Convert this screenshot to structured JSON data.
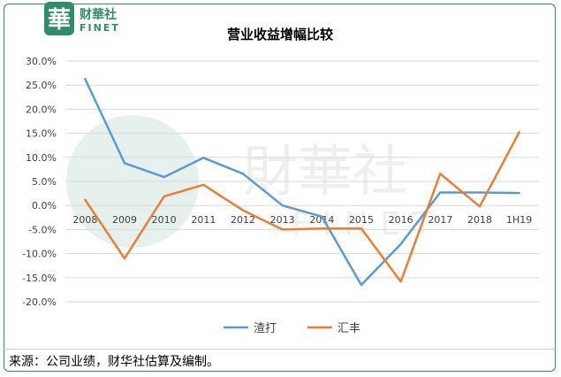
{
  "logo": {
    "glyph": "華",
    "name_cn": "财華社",
    "name_en": "FINET",
    "watermark_cn": "財華社",
    "watermark_en": "FINET"
  },
  "chart_data": {
    "type": "line",
    "title": "营业收益增幅比较",
    "categories": [
      "2008",
      "2009",
      "2010",
      "2011",
      "2012",
      "2013",
      "2014",
      "2015",
      "2016",
      "2017",
      "2018",
      "1H19"
    ],
    "y_ticks": [
      "30.0%",
      "25.0%",
      "20.0%",
      "15.0%",
      "10.0%",
      "5.0%",
      "0.0%",
      "-5.0%",
      "-10.0%",
      "-15.0%",
      "-20.0%"
    ],
    "ylim": [
      -20,
      30
    ],
    "grid": true,
    "legend_position": "bottom",
    "series": [
      {
        "name": "渣打",
        "color": "#5b9bd5",
        "values": [
          26.3,
          8.8,
          5.9,
          9.9,
          6.6,
          0.0,
          -2.3,
          -16.5,
          -8.0,
          2.7,
          2.7,
          2.6
        ]
      },
      {
        "name": "汇丰",
        "color": "#ed7d31",
        "values": [
          1.2,
          -11.0,
          1.9,
          4.3,
          -1.0,
          -5.0,
          -4.8,
          -4.8,
          -15.8,
          6.6,
          -0.2,
          15.2
        ]
      }
    ]
  },
  "source_note": "来源：公司业绩，财华社估算及编制。"
}
